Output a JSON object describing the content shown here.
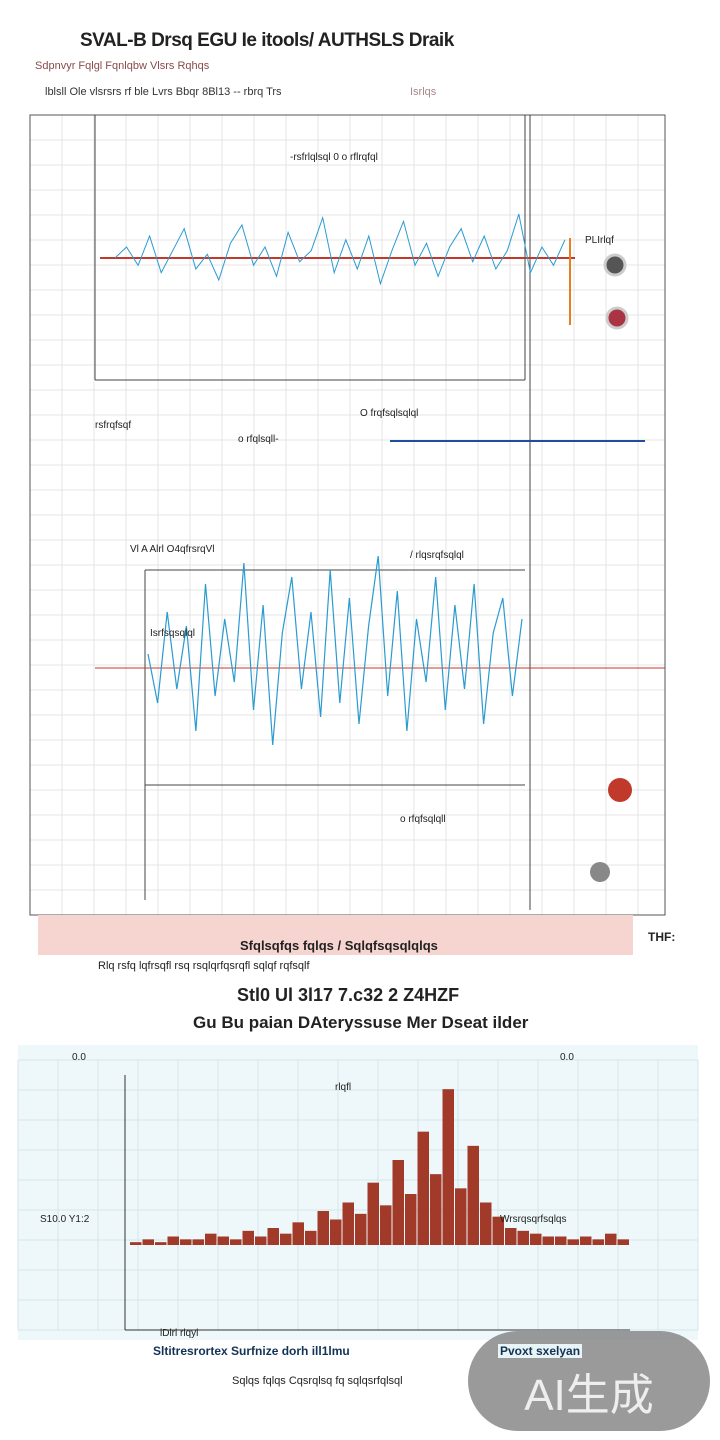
{
  "header": {
    "title": "SVAL-B Drsq EGU Ie itools/ AUTHSLS Draik",
    "subtitle": "Sdpnvyr Fqlgl Fqnlqbw Vlsrs Rqhqs",
    "meta": "lblsll Ole vlsrsrs rf ble Lvrs Bbqr 8Bl13 -- rbrq Trs",
    "meta_tag": "Isrlqs"
  },
  "top_chart_labels": {
    "a": "-rsfrlqlsql 0 o rflrqfql",
    "b": "PLIrlqf",
    "c": "rsfrqfsqf",
    "d": "o rfqlsqll-",
    "e": "O frqfsqlsqlql",
    "f": "Vl A Alrl O4qfrsrqVl",
    "g": "/ rlqsrqfsqlql",
    "h": "Isrfsqsqlql",
    "i": "o rfqfsqlqll"
  },
  "footer": {
    "caption": "Sfqlsqfqs fqlqs / Sqlqfsqsqlqlqs",
    "caption_sub": "Rlq rsfq lqfrsqfl rsq rsqlqrfqsrqfl sqlqf rqfsqlf",
    "corner": "THF:",
    "big_line1": "Stl0 Ul 3l17 7.c32 2 Z4HZF",
    "big_line2": "Gu Bu paian DAteryssuse Mer Dseat ilder"
  },
  "bottom_chart_labels": {
    "left_tick": "S10.0 Y1:2",
    "tl": "0.0",
    "tr": "0.0",
    "right_annot": "Wrsrqsqrfsqlqs",
    "peak_label": "rlqfl",
    "x_note": "lDlrl rlqyl"
  },
  "legend": {
    "left": "Sltitresrortex Surfnize dorh ill1lmu",
    "right": "Pvoxt sxelyan"
  },
  "note": "Sqlqs fqlqs Cqsrqlsq fq sqlqsrfqlsql",
  "watermark": "AI生成",
  "colors": {
    "signal": "#2a9bd0",
    "baseline": "#c0392b",
    "accent": "#e67e22",
    "spectrum": "#a23a2a",
    "navy": "#1f4e9a"
  },
  "chart_data": [
    {
      "type": "line",
      "title": "",
      "series": [
        {
          "values": [
            0,
            3,
            -2,
            6,
            -4,
            2,
            8,
            -3,
            1,
            -6,
            4,
            9,
            -2,
            3,
            -5,
            7,
            -1,
            2,
            11,
            -4,
            5,
            -3,
            6,
            -7,
            2,
            10,
            -2,
            4,
            -5,
            3,
            8,
            -1,
            6,
            -3,
            2,
            12,
            -4,
            3,
            -2,
            5
          ]
        }
      ],
      "xlim": [
        0,
        39
      ],
      "ylim": [
        -15,
        15
      ]
    },
    {
      "type": "line",
      "title": "",
      "series": [
        {
          "values": [
            2,
            -5,
            8,
            -3,
            6,
            -9,
            12,
            -4,
            7,
            -2,
            15,
            -6,
            9,
            -11,
            5,
            13,
            -3,
            8,
            -7,
            14,
            -5,
            10,
            -8,
            6,
            16,
            -4,
            11,
            -9,
            7,
            -2,
            13,
            -6,
            9,
            -3,
            12,
            -8,
            5,
            10,
            -4,
            7
          ]
        }
      ],
      "xlim": [
        0,
        39
      ],
      "ylim": [
        -20,
        20
      ]
    },
    {
      "type": "bar",
      "title": "",
      "series": [
        {
          "values": [
            1,
            2,
            1,
            3,
            2,
            2,
            4,
            3,
            2,
            5,
            3,
            6,
            4,
            8,
            5,
            12,
            9,
            15,
            11,
            22,
            14,
            30,
            18,
            40,
            25,
            55,
            20,
            35,
            15,
            10,
            6,
            5,
            4,
            3,
            3,
            2,
            3,
            2,
            4,
            2
          ]
        }
      ],
      "xlim": [
        0,
        39
      ],
      "ylim": [
        0,
        60
      ]
    }
  ]
}
